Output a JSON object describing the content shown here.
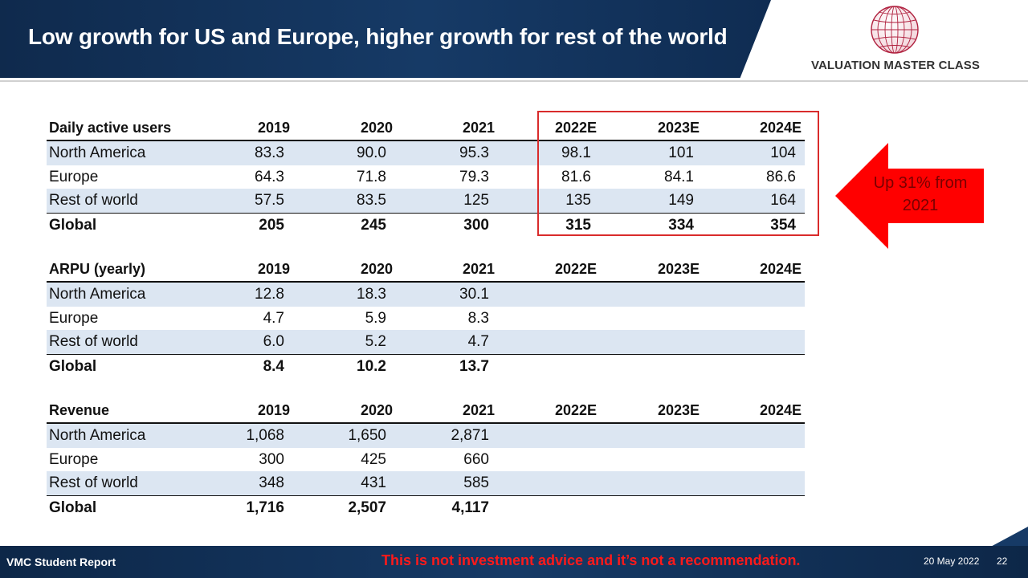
{
  "title": "Low growth for US and Europe, higher growth for rest of the world",
  "logo": {
    "brand": "VALUATION MASTER CLASS",
    "icon": "globe-icon"
  },
  "colors": {
    "header": "#163a66",
    "shade": "#dce6f2",
    "accent_red": "#d92b2b"
  },
  "years": [
    "2019",
    "2020",
    "2021",
    "2022E",
    "2023E",
    "2024E"
  ],
  "tables": [
    {
      "header": "Daily active users",
      "rows": [
        {
          "label": "North America",
          "values": [
            "83.3",
            "90.0",
            "95.3",
            "98.1",
            "101",
            "104"
          ]
        },
        {
          "label": "Europe",
          "values": [
            "64.3",
            "71.8",
            "79.3",
            "81.6",
            "84.1",
            "86.6"
          ]
        },
        {
          "label": "Rest of world",
          "values": [
            "57.5",
            "83.5",
            "125",
            "135",
            "149",
            "164"
          ]
        },
        {
          "label": "Global",
          "values": [
            "205",
            "245",
            "300",
            "315",
            "334",
            "354"
          ]
        }
      ]
    },
    {
      "header": "ARPU (yearly)",
      "rows": [
        {
          "label": "North America",
          "values": [
            "12.8",
            "18.3",
            "30.1",
            "",
            "",
            ""
          ]
        },
        {
          "label": "Europe",
          "values": [
            "4.7",
            "5.9",
            "8.3",
            "",
            "",
            ""
          ]
        },
        {
          "label": "Rest of world",
          "values": [
            "6.0",
            "5.2",
            "4.7",
            "",
            "",
            ""
          ]
        },
        {
          "label": "Global",
          "values": [
            "8.4",
            "10.2",
            "13.7",
            "",
            "",
            ""
          ]
        }
      ]
    },
    {
      "header": "Revenue",
      "rows": [
        {
          "label": "North America",
          "values": [
            "1,068",
            "1,650",
            "2,871",
            "",
            "",
            ""
          ]
        },
        {
          "label": "Europe",
          "values": [
            "300",
            "425",
            "660",
            "",
            "",
            ""
          ]
        },
        {
          "label": "Rest of world",
          "values": [
            "348",
            "431",
            "585",
            "",
            "",
            ""
          ]
        },
        {
          "label": "Global",
          "values": [
            "1,716",
            "2,507",
            "4,117",
            "",
            "",
            ""
          ]
        }
      ]
    }
  ],
  "callout": {
    "line1": "Up 31% from",
    "line2": "2021"
  },
  "footer": {
    "left": "VMC Student Report",
    "disclaimer": "This is not investment advice and it’s not a recommendation.",
    "date": "20 May 2022",
    "page": "22"
  }
}
